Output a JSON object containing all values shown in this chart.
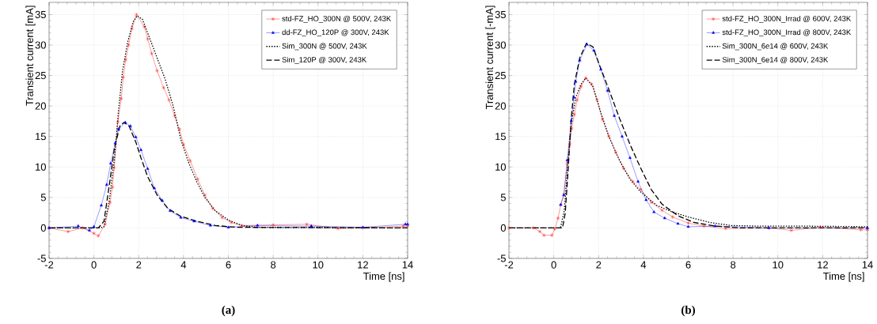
{
  "chart_data": [
    {
      "type": "line",
      "xlabel": "Time [ns]",
      "ylabel": "Transient current [mA]",
      "xlim": [
        -2,
        14
      ],
      "ylim": [
        -5,
        37
      ],
      "xticks": [
        -2,
        0,
        2,
        4,
        6,
        8,
        10,
        12,
        14
      ],
      "yticks": [
        -5,
        0,
        5,
        10,
        15,
        20,
        25,
        30,
        35
      ],
      "grid": true,
      "legend": "top right",
      "annotations": [
        "(a)"
      ],
      "series": [
        {
          "name": "std-FZ_HO_300N @ 500V, 243K",
          "color": "#ff0000",
          "marker": "cross",
          "line_style": "solid",
          "x": [
            -2,
            -1.15,
            -0.5,
            0,
            0.2,
            0.5,
            0.72,
            0.83,
            0.91,
            1.07,
            1.22,
            1.31,
            1.42,
            1.55,
            1.7,
            1.9,
            2.25,
            2.4,
            2.58,
            2.82,
            3.11,
            3.35,
            3.6,
            3.82,
            4.0,
            4.3,
            4.63,
            4.95,
            5.3,
            5.72,
            6.13,
            6.6,
            8,
            9.5,
            10.9,
            12,
            13.8,
            14
          ],
          "values": [
            0,
            -0.6,
            0,
            -0.9,
            -1.3,
            0.6,
            4.2,
            6.7,
            9.9,
            17.4,
            21.2,
            24.7,
            27.6,
            30,
            32.7,
            35,
            33,
            31,
            28.6,
            25.8,
            23,
            21,
            18.4,
            16.2,
            13.7,
            11,
            8,
            5.4,
            3.2,
            1.7,
            0.9,
            0.4,
            0.5,
            0.6,
            -0.1,
            0,
            0.3,
            0.3
          ]
        },
        {
          "name": "dd-FZ_HO_120P @ 300V, 243K",
          "color": "#0000ff",
          "marker": "triangle",
          "line_style": "solid",
          "x": [
            -2,
            -0.7,
            -0.2,
            0,
            0.33,
            0.57,
            0.75,
            0.95,
            1.1,
            1.4,
            1.63,
            1.87,
            2.1,
            2.4,
            2.7,
            3.05,
            3.4,
            3.88,
            4.47,
            5.2,
            6.0,
            7.3,
            9.7,
            12,
            13.9,
            14
          ],
          "values": [
            0,
            0.3,
            -0.4,
            0.2,
            3.7,
            7.1,
            10.6,
            13.9,
            16.2,
            17.3,
            16.7,
            14.9,
            12.8,
            9.7,
            6.5,
            4.5,
            2.8,
            1.7,
            1.1,
            0.4,
            0.1,
            0.4,
            0.3,
            0.1,
            0.6,
            0.6
          ]
        },
        {
          "name": "Sim_300N @ 500V, 243K",
          "color": "#000000",
          "marker": "none",
          "line_style": "dotted",
          "x": [
            -2,
            0.3,
            0.45,
            0.69,
            0.92,
            1.1,
            1.28,
            1.51,
            1.75,
            1.93,
            2.17,
            2.46,
            2.82,
            3.17,
            3.53,
            3.88,
            4.24,
            4.59,
            4.95,
            5.42,
            6.0,
            6.6,
            7.3,
            14
          ],
          "values": [
            0,
            0,
            0.2,
            4.5,
            11.5,
            19.3,
            25.8,
            30.5,
            33.8,
            34.8,
            34.2,
            31.4,
            27.9,
            24.5,
            20.1,
            14.5,
            10.6,
            7.6,
            5,
            2.8,
            1.3,
            0.4,
            0.1,
            0
          ]
        },
        {
          "name": "Sim_120P @ 300V, 243K",
          "color": "#000000",
          "marker": "none",
          "line_style": "dashed",
          "x": [
            -2,
            0.2,
            0.45,
            0.69,
            0.92,
            1.16,
            1.34,
            1.57,
            1.87,
            2.1,
            2.4,
            2.82,
            3.3,
            3.88,
            4.6,
            5.42,
            6.37,
            14
          ],
          "values": [
            0,
            0,
            1.1,
            7.1,
            13.2,
            16.7,
            17.3,
            16.7,
            14.1,
            11.5,
            8.4,
            5.4,
            3.2,
            1.9,
            1.1,
            0.4,
            0.1,
            0
          ]
        }
      ]
    },
    {
      "type": "line",
      "xlabel": "Time [ns]",
      "ylabel": "Transient current [-mA]",
      "xlim": [
        -2,
        14
      ],
      "ylim": [
        -5,
        37
      ],
      "xticks": [
        -2,
        0,
        2,
        4,
        6,
        8,
        10,
        12,
        14
      ],
      "yticks": [
        -5,
        0,
        5,
        10,
        15,
        20,
        25,
        30,
        35
      ],
      "grid": true,
      "legend": "top right",
      "annotations": [
        "(b)"
      ],
      "series": [
        {
          "name": "std-FZ_HO_300N_Irrad @ 600V, 243K",
          "color": "#ff0000",
          "marker": "cross",
          "line_style": "solid",
          "x": [
            -2,
            -0.9,
            -0.62,
            -0.44,
            -0.08,
            0.04,
            0.19,
            0.31,
            0.45,
            0.6,
            0.71,
            0.8,
            0.92,
            1.04,
            1.22,
            1.43,
            1.69,
            1.93,
            2.17,
            2.46,
            2.76,
            3.11,
            3.53,
            3.88,
            4.35,
            4.83,
            5.3,
            6.0,
            6.7,
            7.67,
            9.6,
            10.6,
            11.9,
            13.7,
            14
          ],
          "values": [
            0,
            0,
            -0.6,
            -1.2,
            -1.2,
            -0.2,
            1.6,
            3.8,
            5.5,
            10.6,
            13.7,
            16.3,
            18.6,
            21,
            23.2,
            24.6,
            23.6,
            21,
            17.8,
            15,
            12.4,
            9.8,
            7.6,
            6.3,
            4.2,
            2.9,
            1.8,
            0.8,
            0.3,
            -0.1,
            0,
            -0.4,
            0.1,
            -0.3,
            -0.3
          ]
        },
        {
          "name": "std-FZ_HO_300N_Irrad @ 800V, 243K",
          "color": "#0000ff",
          "marker": "triangle",
          "line_style": "solid",
          "x": [
            0.31,
            0.45,
            0.6,
            0.78,
            0.9,
            0.98,
            1.16,
            1.48,
            1.79,
            2.1,
            2.4,
            2.7,
            3.05,
            3.4,
            3.76,
            4.12,
            4.47,
            4.95,
            5.54,
            6.0,
            7.2,
            9.6,
            14
          ],
          "values": [
            3.8,
            5.4,
            11.1,
            17.6,
            21.4,
            24,
            27.5,
            30.1,
            29.1,
            26,
            22.5,
            18.4,
            15,
            11.5,
            7.6,
            4.6,
            2.6,
            1.6,
            0.7,
            0.2,
            0.3,
            0,
            0
          ]
        },
        {
          "name": "Sim_300N_6e14 @ 600V, 243K",
          "color": "#000000",
          "marker": "none",
          "line_style": "dotted",
          "x": [
            -2,
            0.3,
            0.47,
            0.63,
            0.78,
            0.98,
            1.22,
            1.43,
            1.75,
            2.1,
            2.46,
            2.93,
            3.4,
            3.88,
            4.59,
            5.3,
            6.0,
            6.96,
            7.9,
            9,
            11,
            14
          ],
          "values": [
            0,
            0,
            2.9,
            10.6,
            17.1,
            21.4,
            23.6,
            24.6,
            23.2,
            18.9,
            15,
            11.1,
            8,
            5.9,
            3.7,
            2.6,
            1.8,
            0.9,
            0.4,
            0.3,
            0.3,
            0.2
          ]
        },
        {
          "name": "Sim_300N_6e14 @ 800V, 243K",
          "color": "#000000",
          "marker": "none",
          "line_style": "dashed",
          "x": [
            -2,
            0.39,
            0.51,
            0.63,
            0.78,
            0.92,
            1.16,
            1.46,
            1.75,
            2.05,
            2.46,
            2.93,
            3.4,
            3.88,
            4.35,
            4.83,
            5.54,
            6.25,
            7.2,
            8.38,
            14
          ],
          "values": [
            0,
            0,
            2.4,
            8.9,
            18,
            23.6,
            27.9,
            30.3,
            29.7,
            26.6,
            22.7,
            18,
            13.7,
            9.8,
            6.3,
            3.9,
            2,
            0.9,
            0.3,
            0,
            0
          ]
        }
      ]
    }
  ]
}
